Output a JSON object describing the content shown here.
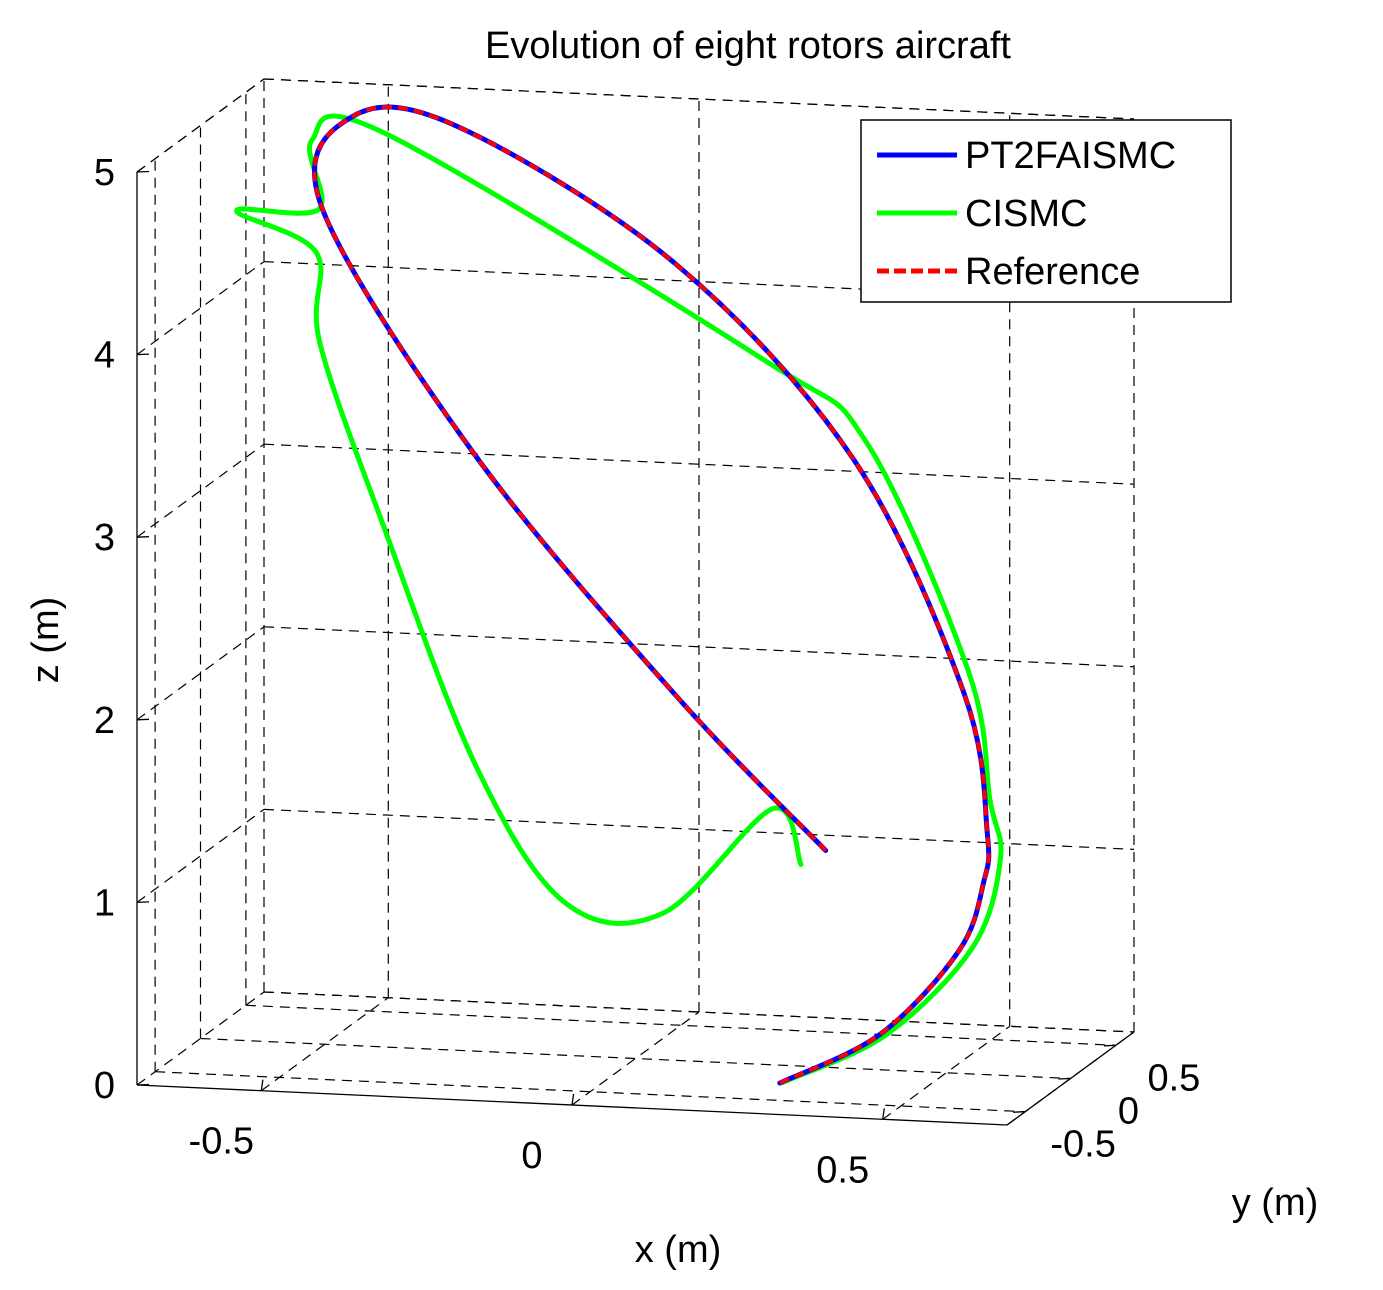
{
  "chart_data": {
    "type": "line",
    "projection": "3d",
    "title": "Evolution of eight rotors aircraft",
    "xlabel": "x (m)",
    "ylabel": "y (m)",
    "zlabel": "z (m)",
    "xlim": [
      -0.7,
      0.7
    ],
    "ylim": [
      -0.7,
      0.7
    ],
    "zlim": [
      0,
      5
    ],
    "xticks": [
      -0.5,
      0,
      0.5
    ],
    "xtick_labels": [
      "-0.5",
      "0",
      "0.5"
    ],
    "yticks": [
      -0.5,
      0,
      0.5
    ],
    "ytick_labels": [
      "-0.5",
      "0",
      "0.5"
    ],
    "zticks": [
      0,
      1,
      2,
      3,
      4,
      5
    ],
    "ztick_labels": [
      "0",
      "1",
      "2",
      "3",
      "4",
      "5"
    ],
    "grid": true,
    "legend_position": "top-right",
    "series": [
      {
        "name": "PT2FAISMC",
        "color": "#0000ff",
        "style": "solid",
        "points": [
          [
            0.307,
            -0.512,
            0.1
          ],
          [
            0.46,
            -0.45,
            0.37
          ],
          [
            0.55,
            -0.2,
            0.75
          ],
          [
            0.56,
            0.0,
            1.05
          ],
          [
            0.55,
            0.11,
            1.28
          ],
          [
            0.5,
            0.2,
            2.0
          ],
          [
            0.3,
            0.35,
            3.2
          ],
          [
            0.0,
            0.43,
            4.2
          ],
          [
            -0.35,
            0.42,
            4.9
          ],
          [
            -0.5,
            0.3,
            4.97
          ],
          [
            -0.52,
            0.1,
            4.55
          ],
          [
            -0.25,
            -0.07,
            3.3
          ],
          [
            0.1,
            -0.25,
            2.1
          ],
          [
            0.36,
            -0.37,
            1.33
          ]
        ]
      },
      {
        "name": "CISMC",
        "color": "#00ff00",
        "style": "solid",
        "points": [
          [
            0.31,
            -0.505,
            0.1
          ],
          [
            0.47,
            -0.45,
            0.37
          ],
          [
            0.57,
            -0.18,
            0.77
          ],
          [
            0.58,
            0.05,
            1.17
          ],
          [
            0.55,
            0.14,
            1.45
          ],
          [
            0.5,
            0.25,
            2.1
          ],
          [
            0.32,
            0.35,
            3.3
          ],
          [
            0.15,
            0.4,
            3.7
          ],
          [
            -0.45,
            0.32,
            4.88
          ],
          [
            -0.55,
            0.2,
            4.87
          ],
          [
            -0.48,
            -0.2,
            4.65
          ],
          [
            -0.62,
            -0.15,
            4.6
          ],
          [
            -0.47,
            -0.3,
            4.45
          ],
          [
            -0.45,
            -0.4,
            4.0
          ],
          [
            -0.35,
            -0.38,
            3.0
          ],
          [
            -0.2,
            -0.38,
            1.7
          ],
          [
            -0.05,
            -0.43,
            1.0
          ],
          [
            0.1,
            -0.38,
            0.95
          ],
          [
            0.25,
            -0.2,
            1.48
          ],
          [
            0.31,
            -0.3,
            1.22
          ]
        ]
      },
      {
        "name": "Reference",
        "color": "#ff0000",
        "style": "dashed",
        "points": [
          [
            0.307,
            -0.512,
            0.1
          ],
          [
            0.46,
            -0.45,
            0.37
          ],
          [
            0.55,
            -0.2,
            0.75
          ],
          [
            0.56,
            0.0,
            1.05
          ],
          [
            0.55,
            0.11,
            1.28
          ],
          [
            0.5,
            0.2,
            2.0
          ],
          [
            0.3,
            0.35,
            3.2
          ],
          [
            0.0,
            0.43,
            4.2
          ],
          [
            -0.35,
            0.42,
            4.9
          ],
          [
            -0.5,
            0.3,
            4.97
          ],
          [
            -0.52,
            0.1,
            4.55
          ],
          [
            -0.25,
            -0.07,
            3.3
          ],
          [
            0.1,
            -0.25,
            2.1
          ],
          [
            0.36,
            -0.37,
            1.33
          ]
        ]
      }
    ]
  }
}
